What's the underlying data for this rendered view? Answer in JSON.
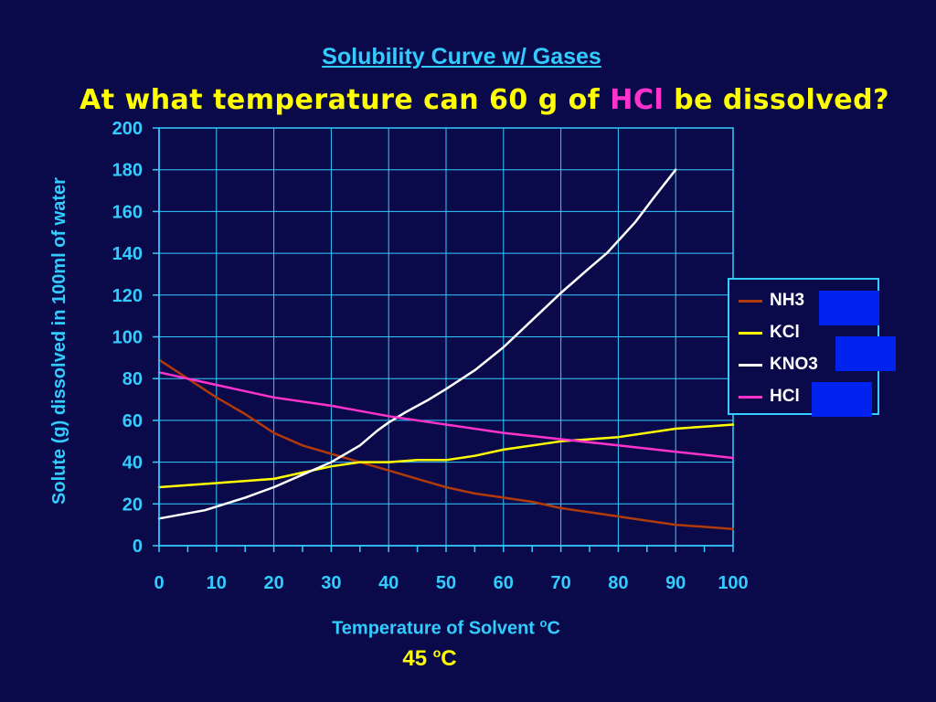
{
  "title": "Solubility Curve w/ Gases",
  "question": {
    "before": "At what temperature can 60 g of ",
    "highlight": "HCl",
    "after": " be dissolved?"
  },
  "answer": {
    "value": "45 ",
    "unit_sup": "o",
    "unit": "C"
  },
  "colors": {
    "background": "#0a0a4a",
    "grid": "#33ccff",
    "title": "#33ccff",
    "question": "#ffff00",
    "highlight": "#ff33cc",
    "mask": "#0022ee"
  },
  "chart_data": {
    "type": "line",
    "xlabel": "Temperature of Solvent",
    "xlabel_sup": "o",
    "xlabel_unit": "C",
    "ylabel": "Solute (g) dissolved in 100ml of water",
    "xlim": [
      0,
      100
    ],
    "ylim": [
      0,
      200
    ],
    "xticks": [
      0,
      10,
      20,
      30,
      40,
      50,
      60,
      70,
      80,
      90,
      100
    ],
    "yticks": [
      0,
      20,
      40,
      60,
      80,
      100,
      120,
      140,
      160,
      180,
      200
    ],
    "grid": true,
    "legend_position": "right",
    "series": [
      {
        "name": "NH3",
        "color": "#b03a0a",
        "points": [
          [
            0,
            89
          ],
          [
            5,
            80
          ],
          [
            10,
            71
          ],
          [
            15,
            63
          ],
          [
            20,
            54
          ],
          [
            25,
            48
          ],
          [
            30,
            44
          ],
          [
            35,
            40
          ],
          [
            40,
            36
          ],
          [
            45,
            32
          ],
          [
            50,
            28
          ],
          [
            55,
            25
          ],
          [
            60,
            23
          ],
          [
            65,
            21
          ],
          [
            70,
            18
          ],
          [
            75,
            16
          ],
          [
            80,
            14
          ],
          [
            85,
            12
          ],
          [
            90,
            10
          ],
          [
            95,
            9
          ],
          [
            100,
            8
          ]
        ]
      },
      {
        "name": "KCl",
        "color": "#ffff00",
        "points": [
          [
            0,
            28
          ],
          [
            10,
            30
          ],
          [
            20,
            32
          ],
          [
            25,
            35
          ],
          [
            30,
            38
          ],
          [
            35,
            40
          ],
          [
            40,
            40
          ],
          [
            45,
            41
          ],
          [
            50,
            41
          ],
          [
            55,
            43
          ],
          [
            60,
            46
          ],
          [
            70,
            50
          ],
          [
            80,
            52
          ],
          [
            90,
            56
          ],
          [
            100,
            58
          ]
        ]
      },
      {
        "name": "KNO3",
        "color": "#ffffff",
        "points": [
          [
            0,
            13
          ],
          [
            8,
            17
          ],
          [
            15,
            23
          ],
          [
            20,
            28
          ],
          [
            25,
            34
          ],
          [
            30,
            40
          ],
          [
            35,
            48
          ],
          [
            38,
            55
          ],
          [
            40,
            59
          ],
          [
            43,
            64
          ],
          [
            47,
            70
          ],
          [
            50,
            75
          ],
          [
            55,
            84
          ],
          [
            60,
            95
          ],
          [
            65,
            108
          ],
          [
            70,
            121
          ],
          [
            75,
            133
          ],
          [
            78,
            140
          ],
          [
            80,
            146
          ],
          [
            83,
            155
          ],
          [
            86,
            166
          ],
          [
            90,
            180
          ]
        ]
      },
      {
        "name": "HCl",
        "color": "#ff33cc",
        "points": [
          [
            0,
            83
          ],
          [
            10,
            77
          ],
          [
            20,
            71
          ],
          [
            30,
            67
          ],
          [
            40,
            62
          ],
          [
            50,
            58
          ],
          [
            60,
            54
          ],
          [
            70,
            51
          ],
          [
            80,
            48
          ],
          [
            90,
            45
          ],
          [
            100,
            42
          ]
        ]
      }
    ]
  }
}
